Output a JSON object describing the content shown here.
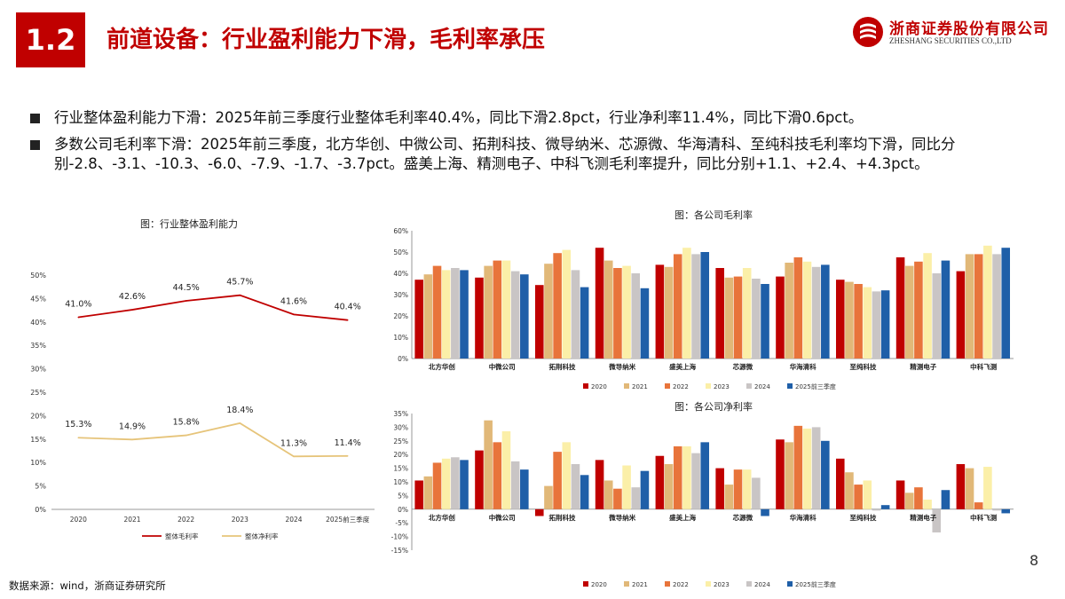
{
  "header": {
    "section_number": "1.2",
    "title": "前道设备：行业盈利能力下滑，毛利率承压",
    "logo_cn": "浙商证券股份有限公司",
    "logo_en": "ZHESHANG SECURITIES CO.,LTD",
    "brand_color": "#c00000"
  },
  "bullets": [
    "行业整体盈利能力下滑：2025年前三季度行业整体毛利率40.4%，同比下滑2.8pct，行业净利率11.4%，同比下滑0.6pct。",
    "多数公司毛利率下滑：2025年前三季度，北方华创、中微公司、拓荆科技、微导纳米、芯源微、华海清科、至纯科技毛利率均下滑，同比分别-2.8、-3.1、-10.3、-6.0、-7.9、-1.7、-3.7pct。盛美上海、精测电子、中科飞测毛利率提升，同比分别+1.1、+2.4、+4.3pct。"
  ],
  "footer": {
    "source": "数据来源：wind，浙商证券研究所",
    "page_number": "8"
  },
  "chart_data": [
    {
      "type": "line",
      "title": "图：行业整体盈利能力",
      "x": [
        "2020",
        "2021",
        "2022",
        "2023",
        "2024",
        "2025前三季度"
      ],
      "ylim": [
        0,
        50
      ],
      "yticks": [
        "0%",
        "5%",
        "10%",
        "15%",
        "20%",
        "25%",
        "30%",
        "35%",
        "40%",
        "45%",
        "50%"
      ],
      "legend_position": "bottom",
      "series": [
        {
          "name": "整体毛利率",
          "color": "#c00000",
          "values": [
            41.0,
            42.6,
            44.5,
            45.7,
            41.6,
            40.4
          ],
          "labels": [
            "41.0%",
            "42.6%",
            "44.5%",
            "45.7%",
            "41.6%",
            "40.4%"
          ]
        },
        {
          "name": "整体净利率",
          "color": "#e6c47a",
          "values": [
            15.3,
            14.9,
            15.8,
            18.4,
            11.3,
            11.4
          ],
          "labels": [
            "15.3%",
            "14.9%",
            "15.8%",
            "18.4%",
            "11.3%",
            "11.4%"
          ]
        }
      ]
    },
    {
      "type": "bar",
      "title": "图：各公司毛利率",
      "categories": [
        "北方华创",
        "中微公司",
        "拓荆科技",
        "微导纳米",
        "盛美上海",
        "芯源微",
        "华海清科",
        "至纯科技",
        "精测电子",
        "中科飞测"
      ],
      "ylim": [
        0,
        60
      ],
      "yticks": [
        "0%",
        "10%",
        "20%",
        "30%",
        "40%",
        "50%",
        "60%"
      ],
      "legend_position": "bottom",
      "series": [
        {
          "name": "2020",
          "color": "#c00000",
          "values": [
            37,
            38,
            34.5,
            52,
            44,
            42.5,
            38.5,
            37,
            47.5,
            41
          ]
        },
        {
          "name": "2021",
          "color": "#e1b878",
          "values": [
            39.5,
            43.5,
            44.5,
            46,
            43,
            38,
            45,
            36,
            43.5,
            49
          ]
        },
        {
          "name": "2022",
          "color": "#e8743b",
          "values": [
            43.5,
            46,
            49.5,
            42.5,
            49,
            38.5,
            47.5,
            35,
            45.5,
            49
          ]
        },
        {
          "name": "2023",
          "color": "#fbefa8",
          "values": [
            41.5,
            46,
            51,
            43.5,
            52,
            42.5,
            45.5,
            33.5,
            49.5,
            53
          ]
        },
        {
          "name": "2024",
          "color": "#c9c5c5",
          "values": [
            42.5,
            41,
            41.5,
            40,
            49,
            37.5,
            43,
            31.5,
            40,
            49
          ]
        },
        {
          "name": "2025前三季度",
          "color": "#1f5fa8",
          "values": [
            41.5,
            39.5,
            33.5,
            33,
            50,
            35,
            44,
            32,
            46,
            52
          ]
        }
      ]
    },
    {
      "type": "bar",
      "title": "图：各公司净利率",
      "categories": [
        "北方华创",
        "中微公司",
        "拓荆科技",
        "微导纳米",
        "盛美上海",
        "芯源微",
        "华海清科",
        "至纯科技",
        "精测电子",
        "中科飞测"
      ],
      "ylim": [
        -15,
        35
      ],
      "yticks": [
        "-15%",
        "-10%",
        "-5%",
        "0%",
        "5%",
        "10%",
        "15%",
        "20%",
        "25%",
        "30%",
        "35%"
      ],
      "legend_position": "bottom",
      "series": [
        {
          "name": "2020",
          "color": "#c00000",
          "values": [
            10.5,
            21.5,
            -2.5,
            18,
            19.5,
            15,
            25.5,
            18.5,
            10.5,
            16.5
          ]
        },
        {
          "name": "2021",
          "color": "#e1b878",
          "values": [
            12,
            32.5,
            8.5,
            10.5,
            16.5,
            9,
            24.5,
            13.5,
            6,
            15
          ]
        },
        {
          "name": "2022",
          "color": "#e8743b",
          "values": [
            17,
            24.5,
            21,
            7.5,
            23,
            14.5,
            30.5,
            9,
            8,
            2.5
          ]
        },
        {
          "name": "2023",
          "color": "#fbefa8",
          "values": [
            18.5,
            28.5,
            24.5,
            16,
            23,
            14.5,
            29.5,
            10.5,
            3.5,
            15.5
          ]
        },
        {
          "name": "2024",
          "color": "#c9c5c5",
          "values": [
            19,
            17.5,
            16.5,
            8,
            20.5,
            11.5,
            30,
            -0.5,
            -8.5,
            -0.5
          ]
        },
        {
          "name": "2025前三季度",
          "color": "#1f5fa8",
          "values": [
            18,
            14.5,
            12.5,
            14,
            24.5,
            -2.5,
            25,
            1.5,
            7,
            -1.5
          ]
        }
      ]
    }
  ]
}
